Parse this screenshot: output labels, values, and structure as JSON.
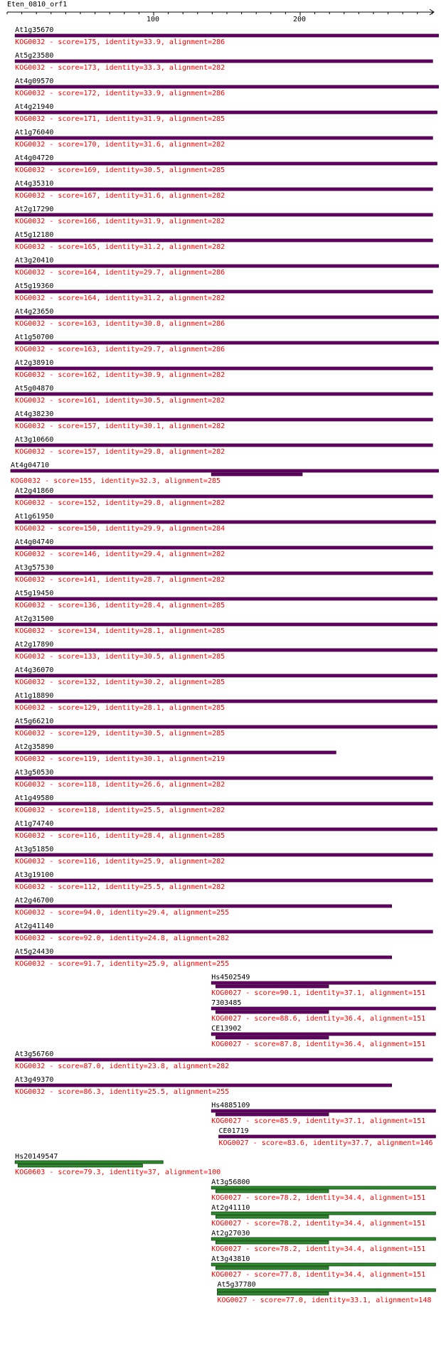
{
  "query": {
    "name": "Eten_0810_orf1",
    "ticks": [
      "100",
      "200"
    ]
  },
  "colors": {
    "KOG0032": "#660066",
    "KOG0027": "#660066",
    "KOG0603": "#115511",
    "KOG0027_green": "#115511",
    "bar_fill_purple": "#660066",
    "bar_fill_green": "#2e8b2e",
    "label_red": "#ff0000",
    "ruler": "#000000"
  },
  "hits": [
    {
      "name": "At1g35670",
      "desc": "KOG0032 - score=175, identity=33.9, alignment=286",
      "start": 3,
      "end": 292,
      "color": "purple"
    },
    {
      "name": "At5g23580",
      "desc": "KOG0032 - score=173, identity=33.3, alignment=282",
      "start": 3,
      "end": 288,
      "color": "purple"
    },
    {
      "name": "At4g09570",
      "desc": "KOG0032 - score=172, identity=33.9, alignment=286",
      "start": 3,
      "end": 292,
      "color": "purple"
    },
    {
      "name": "At4g21940",
      "desc": "KOG0032 - score=171, identity=31.9, alignment=285",
      "start": 3,
      "end": 291,
      "color": "purple"
    },
    {
      "name": "At1g76040",
      "desc": "KOG0032 - score=170, identity=31.6, alignment=282",
      "start": 3,
      "end": 288,
      "color": "purple"
    },
    {
      "name": "At4g04720",
      "desc": "KOG0032 - score=169, identity=30.5, alignment=285",
      "start": 3,
      "end": 291,
      "color": "purple"
    },
    {
      "name": "At4g35310",
      "desc": "KOG0032 - score=167, identity=31.6, alignment=282",
      "start": 3,
      "end": 288,
      "color": "purple"
    },
    {
      "name": "At2g17290",
      "desc": "KOG0032 - score=166, identity=31.9, alignment=282",
      "start": 3,
      "end": 288,
      "color": "purple"
    },
    {
      "name": "At5g12180",
      "desc": "KOG0032 - score=165, identity=31.2, alignment=282",
      "start": 3,
      "end": 288,
      "color": "purple"
    },
    {
      "name": "At3g20410",
      "desc": "KOG0032 - score=164, identity=29.7, alignment=286",
      "start": 3,
      "end": 292,
      "color": "purple"
    },
    {
      "name": "At5g19360",
      "desc": "KOG0032 - score=164, identity=31.2, alignment=282",
      "start": 3,
      "end": 288,
      "color": "purple"
    },
    {
      "name": "At4g23650",
      "desc": "KOG0032 - score=163, identity=30.8, alignment=286",
      "start": 3,
      "end": 292,
      "color": "purple"
    },
    {
      "name": "At1g50700",
      "desc": "KOG0032 - score=163, identity=29.7, alignment=286",
      "start": 3,
      "end": 292,
      "color": "purple"
    },
    {
      "name": "At2g38910",
      "desc": "KOG0032 - score=162, identity=30.9, alignment=282",
      "start": 3,
      "end": 288,
      "color": "purple"
    },
    {
      "name": "At5g04870",
      "desc": "KOG0032 - score=161, identity=30.5, alignment=282",
      "start": 3,
      "end": 288,
      "color": "purple"
    },
    {
      "name": "At4g38230",
      "desc": "KOG0032 - score=157, identity=30.1, alignment=282",
      "start": 3,
      "end": 288,
      "color": "purple"
    },
    {
      "name": "At3g10660",
      "desc": "KOG0032 - score=157, identity=29.8, alignment=282",
      "start": 3,
      "end": 288,
      "color": "purple"
    },
    {
      "name": "At4g04710",
      "desc": "KOG0032 - score=155, identity=32.3, alignment=285",
      "start": 0,
      "end": 292,
      "color": "purple",
      "split": true,
      "seg2start": 137,
      "seg2end": 199
    },
    {
      "name": "At2g41860",
      "desc": "KOG0032 - score=152, identity=29.8, alignment=282",
      "start": 3,
      "end": 288,
      "color": "purple"
    },
    {
      "name": "At1g61950",
      "desc": "KOG0032 - score=150, identity=29.9, alignment=284",
      "start": 3,
      "end": 290,
      "color": "purple"
    },
    {
      "name": "At4g04740",
      "desc": "KOG0032 - score=146, identity=29.4, alignment=282",
      "start": 3,
      "end": 288,
      "color": "purple"
    },
    {
      "name": "At3g57530",
      "desc": "KOG0032 - score=141, identity=28.7, alignment=282",
      "start": 3,
      "end": 288,
      "color": "purple"
    },
    {
      "name": "At5g19450",
      "desc": "KOG0032 - score=136, identity=28.4, alignment=285",
      "start": 3,
      "end": 291,
      "color": "purple"
    },
    {
      "name": "At2g31500",
      "desc": "KOG0032 - score=134, identity=28.1, alignment=285",
      "start": 3,
      "end": 291,
      "color": "purple"
    },
    {
      "name": "At2g17890",
      "desc": "KOG0032 - score=133, identity=30.5, alignment=285",
      "start": 3,
      "end": 291,
      "color": "purple"
    },
    {
      "name": "At4g36070",
      "desc": "KOG0032 - score=132, identity=30.2, alignment=285",
      "start": 3,
      "end": 291,
      "color": "purple"
    },
    {
      "name": "At1g18890",
      "desc": "KOG0032 - score=129, identity=28.1, alignment=285",
      "start": 3,
      "end": 291,
      "color": "purple"
    },
    {
      "name": "At5g66210",
      "desc": "KOG0032 - score=129, identity=30.5, alignment=285",
      "start": 3,
      "end": 291,
      "color": "purple"
    },
    {
      "name": "At2g35890",
      "desc": "KOG0032 - score=119, identity=30.1, alignment=219",
      "start": 3,
      "end": 222,
      "color": "purple"
    },
    {
      "name": "At3g50530",
      "desc": "KOG0032 - score=118, identity=26.6, alignment=282",
      "start": 3,
      "end": 288,
      "color": "purple"
    },
    {
      "name": "At1g49580",
      "desc": "KOG0032 - score=118, identity=25.5, alignment=282",
      "start": 3,
      "end": 288,
      "color": "purple"
    },
    {
      "name": "At1g74740",
      "desc": "KOG0032 - score=116, identity=28.4, alignment=285",
      "start": 3,
      "end": 291,
      "color": "purple"
    },
    {
      "name": "At3g51850",
      "desc": "KOG0032 - score=116, identity=25.9, alignment=282",
      "start": 3,
      "end": 288,
      "color": "purple"
    },
    {
      "name": "At3g19100",
      "desc": "KOG0032 - score=112, identity=25.5, alignment=282",
      "start": 3,
      "end": 288,
      "color": "purple"
    },
    {
      "name": "At2g46700",
      "desc": "KOG0032 - score=94.0, identity=29.4, alignment=255",
      "start": 3,
      "end": 260,
      "color": "purple"
    },
    {
      "name": "At2g41140",
      "desc": "KOG0032 - score=92.0, identity=24.8, alignment=282",
      "start": 3,
      "end": 288,
      "color": "purple"
    },
    {
      "name": "At5g24430",
      "desc": "KOG0032 - score=91.7, identity=25.9, alignment=255",
      "start": 3,
      "end": 260,
      "color": "purple"
    },
    {
      "name": "Hs4502549",
      "desc": "KOG0027 - score=90.1, identity=37.1, alignment=151",
      "start": 137,
      "end": 290,
      "color": "purple",
      "split": true,
      "seg2start": 140,
      "seg2end": 217
    },
    {
      "name": "7303485",
      "desc": "KOG0027 - score=88.6, identity=36.4, alignment=151",
      "start": 137,
      "end": 290,
      "color": "purple",
      "split": true,
      "seg2start": 140,
      "seg2end": 217
    },
    {
      "name": "CE13902",
      "desc": "KOG0027 - score=87.8, identity=36.4, alignment=151",
      "start": 137,
      "end": 290,
      "color": "purple",
      "split": true,
      "seg2start": 140,
      "seg2end": 217
    },
    {
      "name": "At3g56760",
      "desc": "KOG0032 - score=87.0, identity=23.8, alignment=282",
      "start": 3,
      "end": 288,
      "color": "purple"
    },
    {
      "name": "At3g49370",
      "desc": "KOG0032 - score=86.3, identity=25.5, alignment=255",
      "start": 3,
      "end": 260,
      "color": "purple"
    },
    {
      "name": "Hs4885109",
      "desc": "KOG0027 - score=85.9, identity=37.1, alignment=151",
      "start": 137,
      "end": 290,
      "color": "purple",
      "split": true,
      "seg2start": 140,
      "seg2end": 217
    },
    {
      "name": "CE01719",
      "desc": "KOG0027 - score=83.6, identity=37.7, alignment=146",
      "start": 142,
      "end": 290,
      "color": "purple"
    },
    {
      "name": "Hs20149547",
      "desc": "KOG0603 - score=79.3, identity=37, alignment=100",
      "start": 3,
      "end": 104,
      "color": "green",
      "split": true,
      "seg2start": 5,
      "seg2end": 90
    },
    {
      "name": "At3g56800",
      "desc": "KOG0027 - score=78.2, identity=34.4, alignment=151",
      "start": 137,
      "end": 290,
      "color": "green",
      "split": true,
      "seg2start": 140,
      "seg2end": 217
    },
    {
      "name": "At2g41110",
      "desc": "KOG0027 - score=78.2, identity=34.4, alignment=151",
      "start": 137,
      "end": 290,
      "color": "green",
      "split": true,
      "seg2start": 140,
      "seg2end": 217
    },
    {
      "name": "At2g27030",
      "desc": "KOG0027 - score=78.2, identity=34.4, alignment=151",
      "start": 137,
      "end": 290,
      "color": "green",
      "split": true,
      "seg2start": 140,
      "seg2end": 217
    },
    {
      "name": "At3g43810",
      "desc": "KOG0027 - score=77.8, identity=34.4, alignment=151",
      "start": 137,
      "end": 290,
      "color": "green",
      "split": true,
      "seg2start": 140,
      "seg2end": 217
    },
    {
      "name": "At5g37780",
      "desc": "KOG0027 - score=77.0, identity=33.1, alignment=148",
      "start": 141,
      "end": 290,
      "color": "green",
      "split": true,
      "seg2start": 141,
      "seg2end": 217
    }
  ]
}
